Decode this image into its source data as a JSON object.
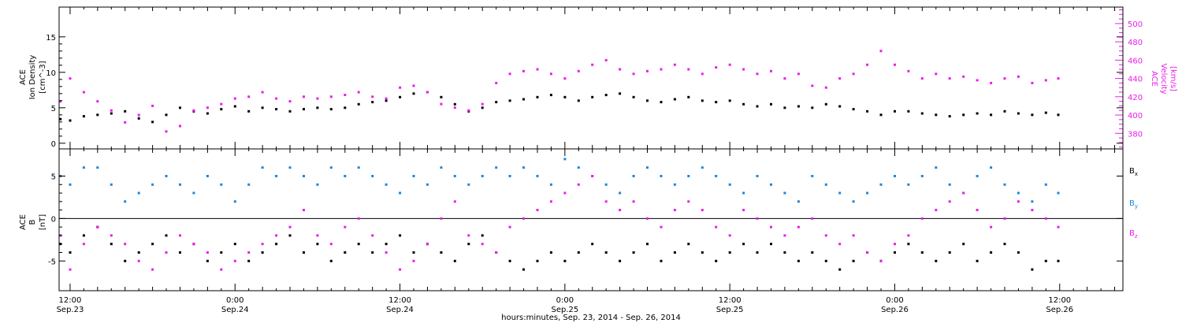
{
  "figure": {
    "xlabel": "hours:minutes, Sep. 23, 2014 - Sep. 26, 2014",
    "x_ticks": [
      {
        "t": 12,
        "time": "12:00",
        "date": "Sep.23"
      },
      {
        "t": 24,
        "time": "0:00",
        "date": "Sep.24"
      },
      {
        "t": 36,
        "time": "12:00",
        "date": "Sep.24"
      },
      {
        "t": 48,
        "time": "0:00",
        "date": "Sep.25"
      },
      {
        "t": 60,
        "time": "12:00",
        "date": "Sep.25"
      },
      {
        "t": 72,
        "time": "0:00",
        "date": "Sep.26"
      },
      {
        "t": 84,
        "time": "12:00",
        "date": "Sep.26"
      }
    ]
  },
  "colors": {
    "black": "#000000",
    "magenta": "#e81ee8",
    "blue": "#1a86e0"
  },
  "chart_data": [
    {
      "type": "scatter",
      "panel": "plasma",
      "x_unit": "hours since Sep. 23, 2014 00:00",
      "xlim": [
        11.2,
        88.6
      ],
      "y_axis_left": {
        "label_lines": [
          "ACE",
          "Ion Density",
          "[cm^-3]"
        ],
        "ylim": [
          -0.8,
          19.2
        ],
        "ticks": [
          0,
          5,
          10,
          15
        ],
        "tick_labels": [
          "0",
          "5",
          "10",
          "15"
        ]
      },
      "y_axis_right": {
        "label_lines": [
          "ACE",
          "Velocity",
          "[km/s]"
        ],
        "ylim": [
          363,
          518
        ],
        "ticks": [
          380,
          400,
          420,
          440,
          460,
          480,
          500
        ],
        "tick_labels": [
          "380",
          "400",
          "420",
          "440",
          "460",
          "480",
          "500"
        ]
      },
      "series": [
        {
          "color": "black",
          "axis": "left",
          "x": [
            11.3,
            12.0,
            13.0,
            14.0,
            15.0,
            16.0,
            17.0,
            18.0,
            19.0,
            20.0,
            21.0,
            22.0,
            23.0,
            24.0,
            25.0,
            26.0,
            27.0,
            28.0,
            29.0,
            30.0,
            31.0,
            32.0,
            33.0,
            34.0,
            35.0,
            36.0,
            37.0,
            38.0,
            39.0,
            40.0,
            41.0,
            42.0,
            43.0,
            44.0,
            45.0,
            46.0,
            47.0,
            48.0,
            49.0,
            50.0,
            51.0,
            52.0,
            53.0,
            54.0,
            55.0,
            56.0,
            57.0,
            58.0,
            59.0,
            60.0,
            61.0,
            62.0,
            63.0,
            64.0,
            65.0,
            66.0,
            67.0,
            68.0,
            69.0,
            70.0,
            71.0,
            72.0,
            73.0,
            74.0,
            75.0,
            76.0,
            77.0,
            78.0,
            79.0,
            80.0,
            81.0,
            82.0,
            83.0,
            83.9
          ],
          "y": [
            3.4,
            3.2,
            3.8,
            4.0,
            4.2,
            4.5,
            3.5,
            3.0,
            4.0,
            5.0,
            4.5,
            4.2,
            4.8,
            5.2,
            4.5,
            5.0,
            4.8,
            4.5,
            4.8,
            5.0,
            4.8,
            5.0,
            5.5,
            5.8,
            6.0,
            6.5,
            7.0,
            7.2,
            6.5,
            5.5,
            4.5,
            5.0,
            5.8,
            6.0,
            6.2,
            6.5,
            6.8,
            6.5,
            6.0,
            6.5,
            6.8,
            7.0,
            6.5,
            6.0,
            5.8,
            6.2,
            6.5,
            6.0,
            5.8,
            6.0,
            5.5,
            5.2,
            5.5,
            5.0,
            5.2,
            5.0,
            5.5,
            5.2,
            4.8,
            4.5,
            4.0,
            4.5,
            4.5,
            4.2,
            4.0,
            3.8,
            4.0,
            4.2,
            4.0,
            4.5,
            4.2,
            4.0,
            4.3,
            4.0
          ]
        },
        {
          "color": "magenta",
          "axis": "right",
          "x": [
            11.3,
            12.0,
            13.0,
            14.0,
            15.0,
            16.0,
            17.0,
            18.0,
            19.0,
            20.0,
            21.0,
            22.0,
            23.0,
            24.0,
            25.0,
            26.0,
            27.0,
            28.0,
            29.0,
            30.0,
            31.0,
            32.0,
            33.0,
            34.0,
            35.0,
            36.0,
            37.0,
            38.0,
            39.0,
            40.0,
            41.0,
            42.0,
            43.0,
            44.0,
            45.0,
            46.0,
            47.0,
            48.0,
            49.0,
            50.0,
            51.0,
            52.0,
            53.0,
            54.0,
            55.0,
            56.0,
            57.0,
            58.0,
            59.0,
            60.0,
            61.0,
            62.0,
            63.0,
            64.0,
            65.0,
            66.0,
            67.0,
            68.0,
            69.0,
            70.0,
            71.0,
            72.0,
            73.0,
            74.0,
            75.0,
            76.0,
            77.0,
            78.0,
            79.0,
            80.0,
            81.0,
            82.0,
            83.0,
            83.9
          ],
          "y": [
            415,
            440,
            425,
            415,
            405,
            392,
            400,
            410,
            382,
            388,
            405,
            408,
            412,
            418,
            420,
            425,
            418,
            415,
            420,
            418,
            420,
            422,
            425,
            420,
            418,
            430,
            432,
            425,
            412,
            408,
            405,
            412,
            435,
            445,
            448,
            450,
            445,
            440,
            448,
            455,
            460,
            450,
            445,
            448,
            450,
            455,
            450,
            445,
            452,
            455,
            450,
            445,
            448,
            440,
            445,
            432,
            430,
            440,
            445,
            455,
            470,
            455,
            448,
            440,
            445,
            440,
            442,
            438,
            435,
            440,
            442,
            435,
            438,
            440
          ]
        }
      ]
    },
    {
      "type": "scatter",
      "panel": "magnetic-field",
      "x_unit": "hours since Sep. 23, 2014 00:00",
      "xlim": [
        11.2,
        88.6
      ],
      "y_axis_left": {
        "label_lines": [
          "ACE",
          "B",
          "[nT]"
        ],
        "ylim": [
          -8.5,
          8.2
        ],
        "ticks": [
          -5,
          0,
          5
        ],
        "tick_labels": [
          "-5",
          "0",
          "5"
        ]
      },
      "zero_line": 0,
      "legend": [
        {
          "main": "B",
          "sub": "x",
          "color": "black"
        },
        {
          "main": "B",
          "sub": "y",
          "color": "blue"
        },
        {
          "main": "B",
          "sub": "z",
          "color": "magenta"
        }
      ],
      "series": [
        {
          "name": "Bx",
          "color": "black",
          "x": [
            11.3,
            12.0,
            13.0,
            14.0,
            15.0,
            16.0,
            17.0,
            18.0,
            19.0,
            20.0,
            21.0,
            22.0,
            23.0,
            24.0,
            25.0,
            26.0,
            27.0,
            28.0,
            29.0,
            30.0,
            31.0,
            32.0,
            33.0,
            34.0,
            35.0,
            36.0,
            37.0,
            38.0,
            39.0,
            40.0,
            41.0,
            42.0,
            43.0,
            44.0,
            45.0,
            46.0,
            47.0,
            48.0,
            49.0,
            50.0,
            51.0,
            52.0,
            53.0,
            54.0,
            55.0,
            56.0,
            57.0,
            58.0,
            59.0,
            60.0,
            61.0,
            62.0,
            63.0,
            64.0,
            65.0,
            66.0,
            67.0,
            68.0,
            69.0,
            70.0,
            71.0,
            72.0,
            73.0,
            74.0,
            75.0,
            76.0,
            77.0,
            78.0,
            79.0,
            80.0,
            81.0,
            82.0,
            83.0,
            83.9
          ],
          "y": [
            -3,
            -4,
            -2,
            -1,
            -3,
            -5,
            -4,
            -3,
            -2,
            -4,
            -3,
            -5,
            -4,
            -3,
            -5,
            -4,
            -3,
            -2,
            -4,
            -3,
            -5,
            -4,
            -3,
            -4,
            -3,
            -2,
            -4,
            -3,
            -4,
            -5,
            -3,
            -2,
            -4,
            -5,
            -6,
            -5,
            -4,
            -5,
            -4,
            -3,
            -4,
            -5,
            -4,
            -3,
            -5,
            -4,
            -3,
            -4,
            -5,
            -4,
            -3,
            -4,
            -3,
            -4,
            -5,
            -4,
            -5,
            -6,
            -5,
            -4,
            -5,
            -4,
            -3,
            -4,
            -5,
            -4,
            -3,
            -5,
            -4,
            -3,
            -4,
            -6,
            -5,
            -5
          ]
        },
        {
          "name": "By",
          "color": "blue",
          "x": [
            11.3,
            12.0,
            13.0,
            14.0,
            15.0,
            16.0,
            17.0,
            18.0,
            19.0,
            20.0,
            21.0,
            22.0,
            23.0,
            24.0,
            25.0,
            26.0,
            27.0,
            28.0,
            29.0,
            30.0,
            31.0,
            32.0,
            33.0,
            34.0,
            35.0,
            36.0,
            37.0,
            38.0,
            39.0,
            40.0,
            41.0,
            42.0,
            43.0,
            44.0,
            45.0,
            46.0,
            47.0,
            48.0,
            49.0,
            50.0,
            51.0,
            52.0,
            53.0,
            54.0,
            55.0,
            56.0,
            57.0,
            58.0,
            59.0,
            60.0,
            61.0,
            62.0,
            63.0,
            64.0,
            65.0,
            66.0,
            67.0,
            68.0,
            69.0,
            70.0,
            71.0,
            72.0,
            73.0,
            74.0,
            75.0,
            76.0,
            77.0,
            78.0,
            79.0,
            80.0,
            81.0,
            82.0,
            83.0,
            83.9
          ],
          "y": [
            5,
            4,
            6,
            6,
            4,
            2,
            3,
            4,
            5,
            4,
            3,
            5,
            4,
            2,
            4,
            6,
            5,
            6,
            5,
            4,
            6,
            5,
            6,
            5,
            4,
            3,
            5,
            4,
            6,
            5,
            4,
            5,
            6,
            5,
            6,
            5,
            4,
            7,
            6,
            5,
            4,
            3,
            5,
            6,
            5,
            4,
            5,
            6,
            5,
            4,
            3,
            5,
            4,
            3,
            2,
            5,
            4,
            3,
            2,
            3,
            4,
            5,
            4,
            5,
            6,
            4,
            3,
            5,
            6,
            4,
            3,
            2,
            4,
            3
          ]
        },
        {
          "name": "Bz",
          "color": "magenta",
          "x": [
            11.3,
            12.0,
            13.0,
            14.0,
            15.0,
            16.0,
            17.0,
            18.0,
            19.0,
            20.0,
            21.0,
            22.0,
            23.0,
            24.0,
            25.0,
            26.0,
            27.0,
            28.0,
            29.0,
            30.0,
            31.0,
            32.0,
            33.0,
            34.0,
            35.0,
            36.0,
            37.0,
            38.0,
            39.0,
            40.0,
            41.0,
            42.0,
            43.0,
            44.0,
            45.0,
            46.0,
            47.0,
            48.0,
            49.0,
            50.0,
            51.0,
            52.0,
            53.0,
            54.0,
            55.0,
            56.0,
            57.0,
            58.0,
            59.0,
            60.0,
            61.0,
            62.0,
            63.0,
            64.0,
            65.0,
            66.0,
            67.0,
            68.0,
            69.0,
            70.0,
            71.0,
            72.0,
            73.0,
            74.0,
            75.0,
            76.0,
            77.0,
            78.0,
            79.0,
            80.0,
            81.0,
            82.0,
            83.0,
            83.9
          ],
          "y": [
            -2,
            -6,
            -3,
            -1,
            -2,
            -3,
            -5,
            -6,
            -4,
            -2,
            -3,
            -4,
            -6,
            -5,
            -4,
            -3,
            -2,
            -1,
            1,
            -2,
            -3,
            -1,
            0,
            -2,
            -4,
            -6,
            -5,
            -3,
            0,
            2,
            -2,
            -3,
            -4,
            -1,
            0,
            1,
            2,
            3,
            4,
            5,
            2,
            1,
            2,
            0,
            -1,
            1,
            2,
            1,
            -1,
            -2,
            1,
            0,
            -1,
            -2,
            -1,
            0,
            -2,
            -3,
            -2,
            -4,
            -5,
            -3,
            -2,
            0,
            1,
            2,
            3,
            1,
            -1,
            0,
            2,
            1,
            0,
            -1
          ]
        }
      ]
    }
  ]
}
